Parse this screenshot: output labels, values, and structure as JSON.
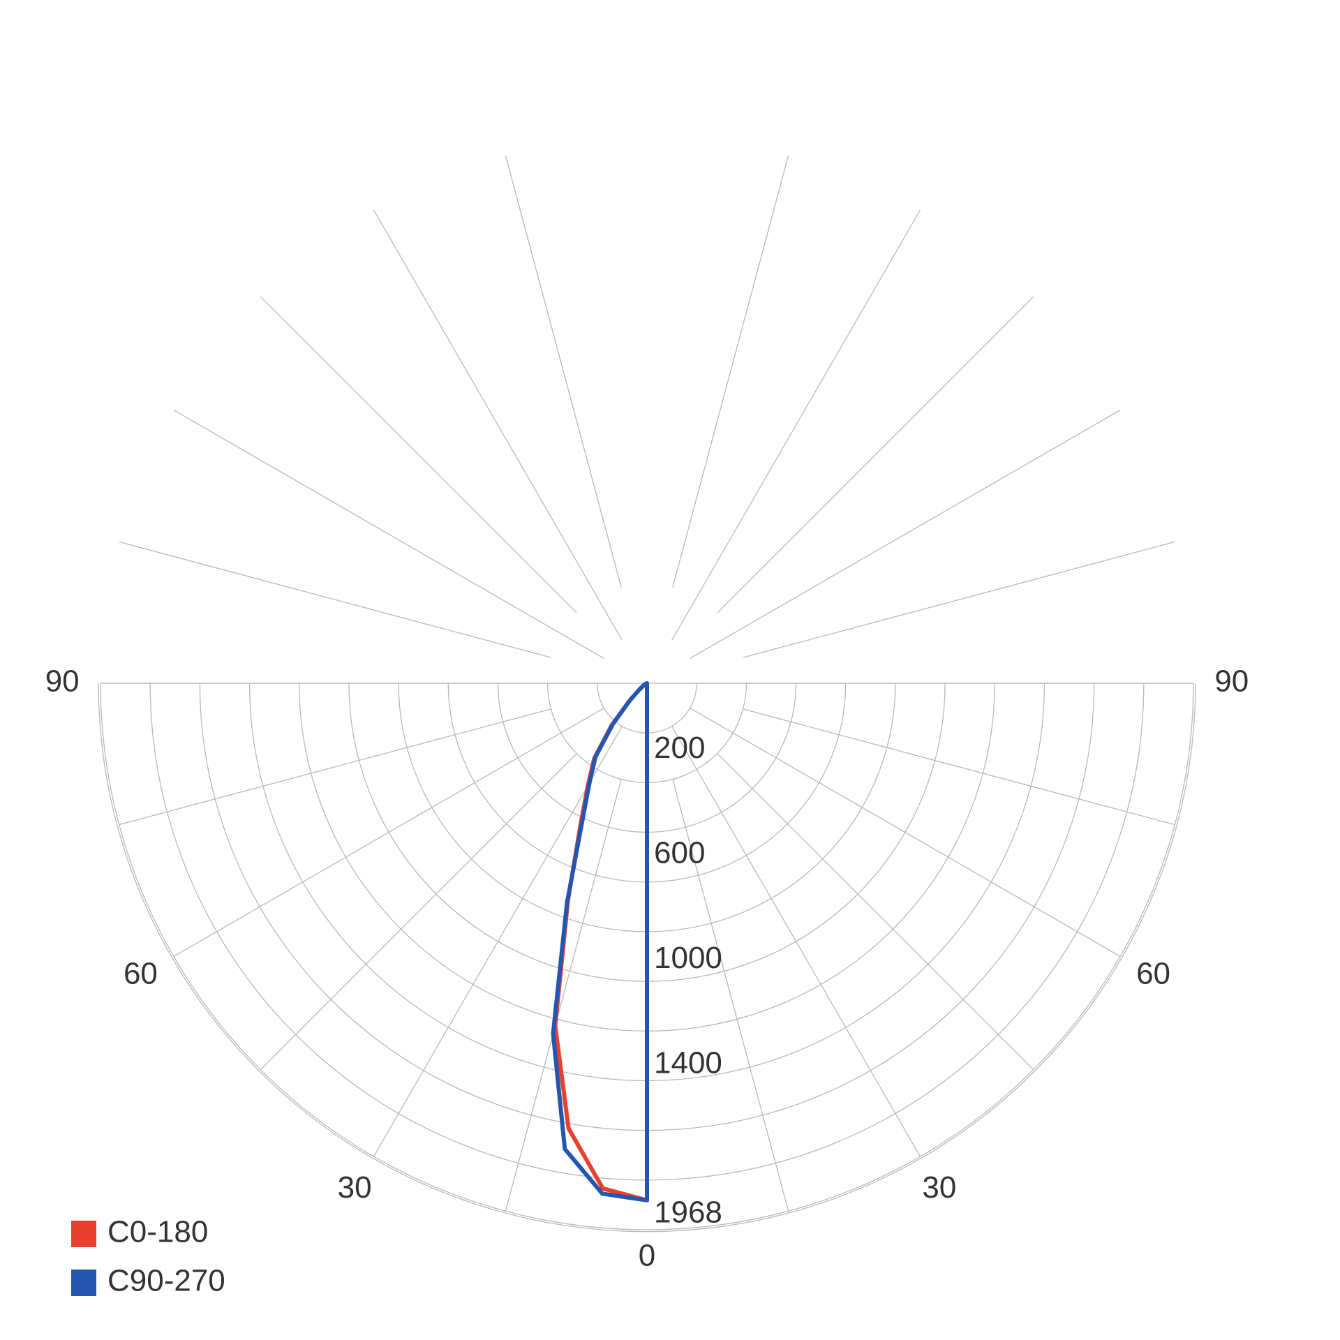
{
  "chart_data": {
    "type": "polar",
    "theta": [
      0,
      5,
      10,
      15,
      20,
      25,
      30,
      35,
      40,
      45,
      50,
      60,
      70,
      80,
      90
    ],
    "series": [
      {
        "name": "C0-180",
        "color": "#e8402e",
        "values": [
          1968,
          1930,
          1720,
          1350,
          880,
          600,
          450,
          350,
          210,
          95,
          40,
          10,
          0,
          0,
          0
        ]
      },
      {
        "name": "C90-270",
        "color": "#2456b0",
        "values": [
          1968,
          1950,
          1800,
          1380,
          890,
          585,
          438,
          342,
          200,
          89,
          40,
          15,
          0,
          0,
          0
        ]
      }
    ],
    "rlim": [
      0,
      2080
    ],
    "rticks": [
      200,
      600,
      1000,
      1400,
      1968
    ],
    "thetalim": [
      0,
      90
    ],
    "thetaticks": [
      0,
      30,
      60,
      90
    ],
    "legend": "bottom-left"
  }
}
